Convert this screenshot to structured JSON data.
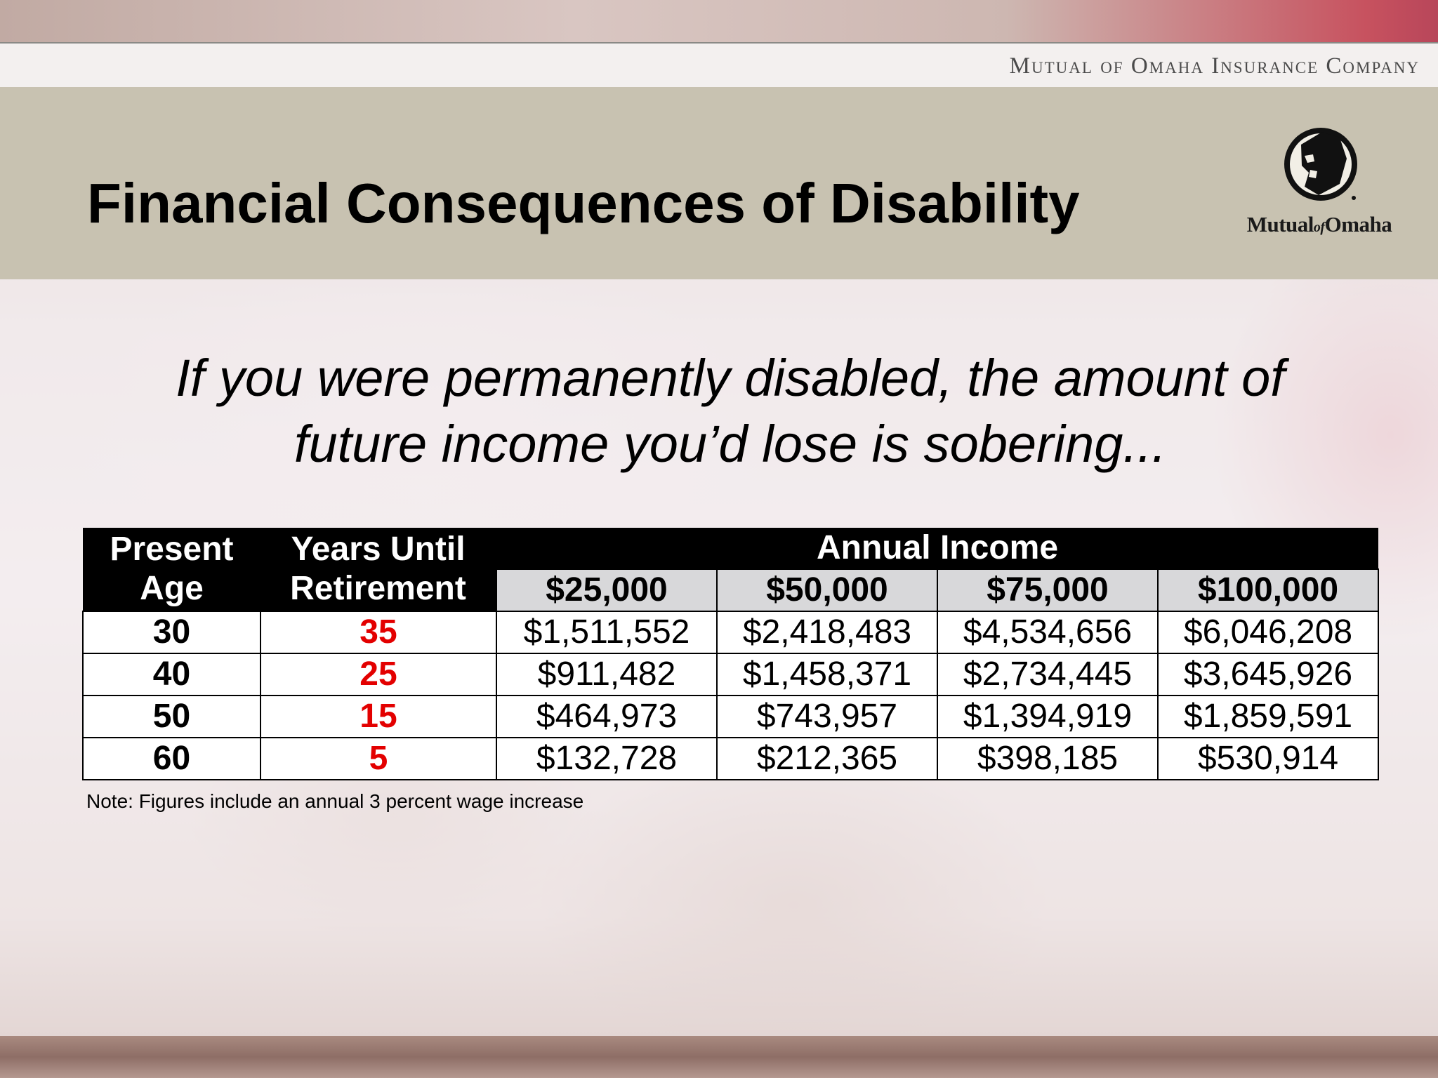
{
  "header": {
    "company_name": "Mutual of Omaha Insurance Company",
    "title": "Financial Consequences of Disability",
    "logo_wordmark_left": "Mutual",
    "logo_wordmark_of": "of",
    "logo_wordmark_right": "Omaha"
  },
  "subtitle": {
    "line1": "If you were permanently disabled, the amount of",
    "line2": "future income you’d lose is sobering..."
  },
  "table": {
    "headers": {
      "present_age": [
        "Present",
        "Age"
      ],
      "years_until_retirement": [
        "Years Until",
        "Retirement"
      ],
      "annual_income": "Annual Income",
      "income_levels": [
        "$25,000",
        "$50,000",
        "$75,000",
        "$100,000"
      ]
    },
    "rows": [
      {
        "age": "30",
        "years": "35",
        "values": [
          "$1,511,552",
          "$2,418,483",
          "$4,534,656",
          "$6,046,208"
        ]
      },
      {
        "age": "40",
        "years": "25",
        "values": [
          "$911,482",
          "$1,458,371",
          "$2,734,445",
          "$3,645,926"
        ]
      },
      {
        "age": "50",
        "years": "15",
        "values": [
          "$464,973",
          "$743,957",
          "$1,394,919",
          "$1,859,591"
        ]
      },
      {
        "age": "60",
        "years": "5",
        "values": [
          "$132,728",
          "$212,365",
          "$398,185",
          "$530,914"
        ]
      }
    ]
  },
  "note": "Note: Figures include an annual 3 percent wage increase",
  "colors": {
    "title_band": "#c8c2b1",
    "years_text": "#e30000",
    "header_dark": "#000000",
    "header_sub": "#d8d8da"
  }
}
